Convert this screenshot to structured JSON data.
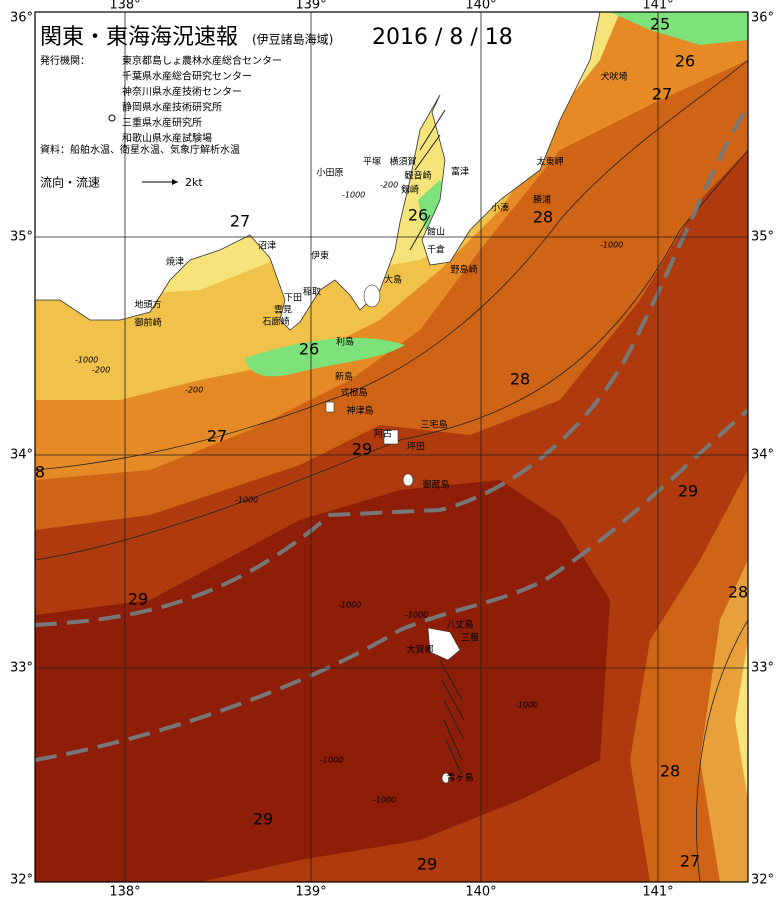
{
  "header": {
    "title": "関東・東海海況速報",
    "subtitle": "(伊豆諸島海域)",
    "date": "2016 / 8 / 18"
  },
  "publisher": {
    "label": "発行機関：",
    "organizations": [
      "東京都島しょ農林水産総合センター",
      "千葉県水産総合研究センター",
      "神奈川県水産技術センター",
      "静岡県水産技術研究所",
      "三重県水産研究所",
      "和歌山県水産試験場"
    ]
  },
  "source": "資料：船舶水温、衛星水温、気象庁解析水温",
  "current_legend": {
    "label": "流向・流速",
    "scale": "2kt"
  },
  "axes": {
    "longitude_top": [
      "138°",
      "139°",
      "140°",
      "141°"
    ],
    "longitude_bottom": [
      "138°",
      "139°",
      "140°",
      "141°"
    ],
    "latitude_left": [
      "36°",
      "35°",
      "34°",
      "33°",
      "32°"
    ],
    "latitude_right": [
      "36°",
      "35°",
      "34°",
      "33°",
      "32°"
    ]
  },
  "isotherm_labels": [
    25,
    26,
    27,
    28,
    27,
    26,
    26,
    28,
    27,
    29,
    8,
    29,
    29,
    28,
    28,
    29,
    29,
    27
  ],
  "depth_labels": [
    -1000,
    -200,
    -1000,
    -200,
    -1000,
    -200,
    -1000,
    -1000,
    -1000,
    -1000,
    -1000,
    -1000
  ],
  "place_names": [
    "犬吠埼",
    "太東岬",
    "勝浦",
    "小湊",
    "館山",
    "千倉",
    "野島崎",
    "富津",
    "横須賀",
    "平塚",
    "観音崎",
    "剱崎",
    "小田原",
    "沼津",
    "焼津",
    "伊東",
    "稲取",
    "下田",
    "雲見",
    "石廊崎",
    "地頭方",
    "御前崎",
    "大島",
    "利島",
    "新島",
    "式根島",
    "神津島",
    "阿古",
    "三宅島",
    "坪田",
    "御蔵島",
    "八丈島",
    "三根",
    "大賀郷",
    "青ヶ島"
  ]
}
